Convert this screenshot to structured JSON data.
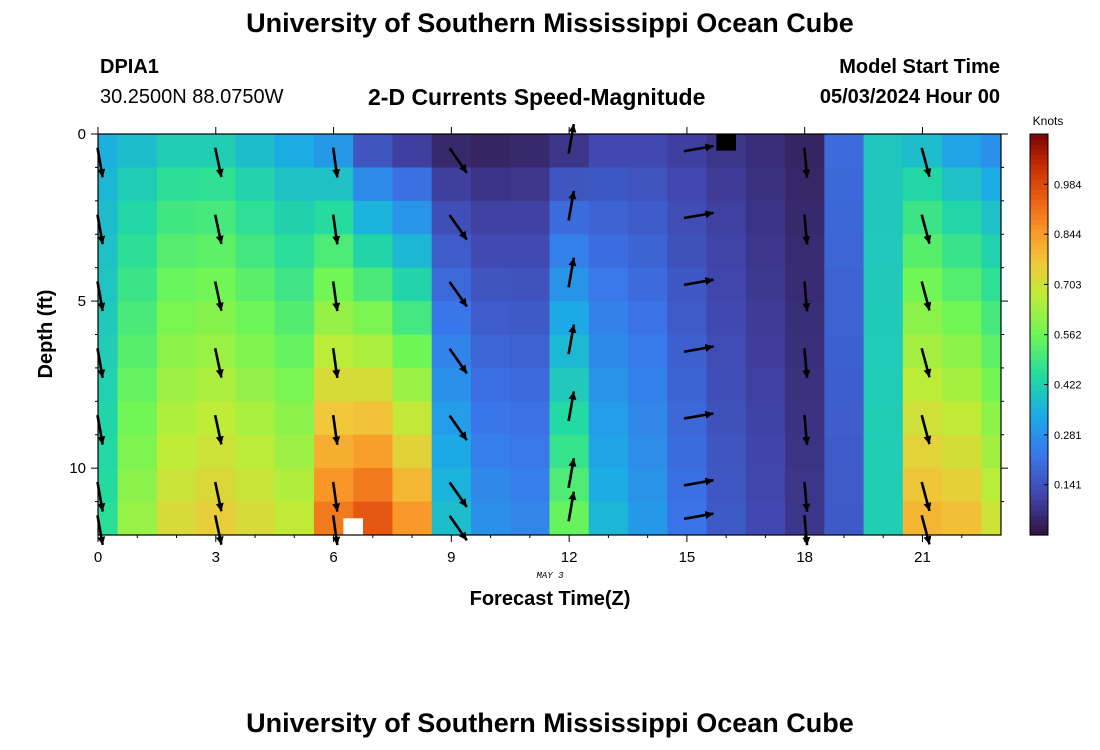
{
  "header": {
    "title": "University of Southern Mississippi Ocean Cube",
    "station": "DPIA1",
    "coords": "30.2500N  88.0750W",
    "subtitle": "2-D Currents Speed-Magnitude",
    "start_label": "Model Start Time",
    "start_value": "05/03/2024 Hour 00"
  },
  "footer": {
    "title": "University of Southern Mississippi Ocean Cube"
  },
  "chart_data": {
    "type": "heatmap",
    "title": "2-D Currents Speed-Magnitude",
    "xlabel": "Forecast Time(Z)",
    "xlabel_note": "MAY 3",
    "ylabel": "Depth (ft)",
    "x_ticks": [
      "0",
      "3",
      "6",
      "9",
      "12",
      "15",
      "18",
      "21"
    ],
    "x_tick_values": [
      0,
      3,
      6,
      9,
      12,
      15,
      18,
      21
    ],
    "y_ticks": [
      "0",
      "5",
      "10"
    ],
    "y_tick_values": [
      0,
      5,
      10
    ],
    "xlim": [
      0,
      23
    ],
    "ylim": [
      0,
      12
    ],
    "colorbar": {
      "unit": "Knots",
      "ticks": [
        "0.984",
        "0.844",
        "0.703",
        "0.562",
        "0.422",
        "0.281",
        "0.141"
      ],
      "tick_values": [
        0.984,
        0.844,
        0.703,
        0.562,
        0.422,
        0.281,
        0.141
      ],
      "range": [
        0.0,
        1.125
      ]
    },
    "speed_profiles_knots": [
      {
        "hour": 0,
        "top": 0.35,
        "bottom": 0.46
      },
      {
        "hour": 1,
        "top": 0.38,
        "bottom": 0.62
      },
      {
        "hour": 2,
        "top": 0.42,
        "bottom": 0.72
      },
      {
        "hour": 3,
        "top": 0.42,
        "bottom": 0.75
      },
      {
        "hour": 4,
        "top": 0.38,
        "bottom": 0.72
      },
      {
        "hour": 5,
        "top": 0.34,
        "bottom": 0.68
      },
      {
        "hour": 6,
        "top": 0.3,
        "bottom": 0.9
      },
      {
        "hour": 7,
        "top": 0.15,
        "bottom": 0.96
      },
      {
        "hour": 8,
        "top": 0.1,
        "bottom": 0.85
      },
      {
        "hour": 9,
        "top": 0.05,
        "bottom": 0.38
      },
      {
        "hour": 10,
        "top": 0.04,
        "bottom": 0.28
      },
      {
        "hour": 11,
        "top": 0.05,
        "bottom": 0.26
      },
      {
        "hour": 12,
        "top": 0.08,
        "bottom": 0.55
      },
      {
        "hour": 13,
        "top": 0.12,
        "bottom": 0.36
      },
      {
        "hour": 14,
        "top": 0.12,
        "bottom": 0.3
      },
      {
        "hour": 15,
        "top": 0.1,
        "bottom": 0.22
      },
      {
        "hour": 16,
        "top": 0.08,
        "bottom": 0.16
      },
      {
        "hour": 17,
        "top": 0.06,
        "bottom": 0.12
      },
      {
        "hour": 18,
        "top": 0.04,
        "bottom": 0.08
      },
      {
        "hour": 19,
        "top": 0.2,
        "bottom": 0.16
      },
      {
        "hour": 20,
        "top": 0.4,
        "bottom": 0.42
      },
      {
        "hour": 21,
        "top": 0.38,
        "bottom": 0.8
      },
      {
        "hour": 22,
        "top": 0.32,
        "bottom": 0.78
      },
      {
        "hour": 23,
        "top": 0.28,
        "bottom": 0.7
      }
    ],
    "missing_cells": [
      {
        "hour": 16,
        "depth": 0,
        "color": "#000000"
      },
      {
        "hour": 6.5,
        "depth": 11.5,
        "color": "#ffffff"
      }
    ],
    "arrow_hours": [
      0,
      3,
      6,
      9,
      12,
      15,
      18,
      21
    ],
    "arrow_depths": [
      0.5,
      2.5,
      4.5,
      6.5,
      8.5,
      10.5,
      11.5
    ],
    "arrow_directions_deg": [
      {
        "hour": 0,
        "deg": 170
      },
      {
        "hour": 3,
        "deg": 168
      },
      {
        "hour": 6,
        "deg": 172
      },
      {
        "hour": 9,
        "deg": 145
      },
      {
        "hour": 12,
        "deg": 10
      },
      {
        "hour": 15,
        "deg": 80
      },
      {
        "hour": 18,
        "deg": 175
      },
      {
        "hour": 21,
        "deg": 165
      }
    ]
  }
}
